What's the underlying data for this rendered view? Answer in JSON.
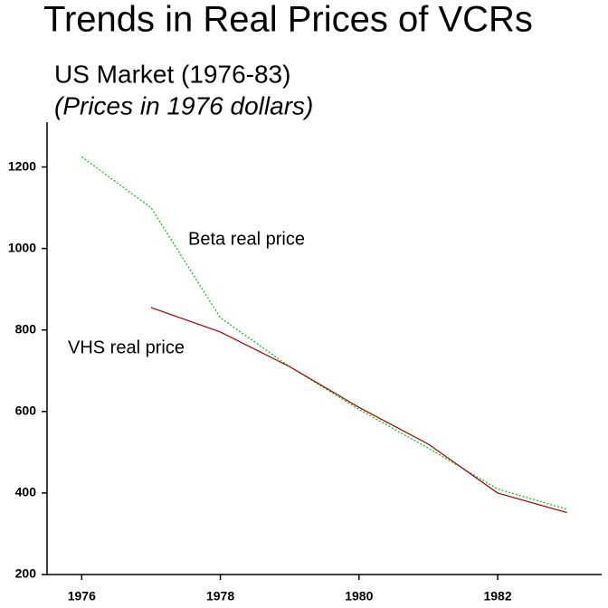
{
  "chart_data": {
    "type": "line",
    "title": "Trends in Real Prices of VCRs",
    "subtitle": "US Market (1976-83)",
    "subtitle2": "(Prices in 1976 dollars)",
    "x": [
      1976,
      1977,
      1978,
      1979,
      1980,
      1981,
      1982,
      1983
    ],
    "series": [
      {
        "name": "Beta real price",
        "color": "#00c000",
        "dashed": true,
        "values": [
          1225,
          1100,
          830,
          710,
          605,
          510,
          410,
          360
        ]
      },
      {
        "name": "VHS real price",
        "color": "#a00000",
        "dashed": false,
        "values": [
          null,
          855,
          795,
          710,
          610,
          520,
          400,
          352
        ]
      }
    ],
    "xlim": [
      1975.5,
      1983.5
    ],
    "xticks": [
      1976,
      1978,
      1980,
      1982
    ],
    "ylim": [
      200,
      1310
    ],
    "yticks": [
      200,
      400,
      600,
      800,
      1000,
      1200
    ],
    "grid": false
  }
}
